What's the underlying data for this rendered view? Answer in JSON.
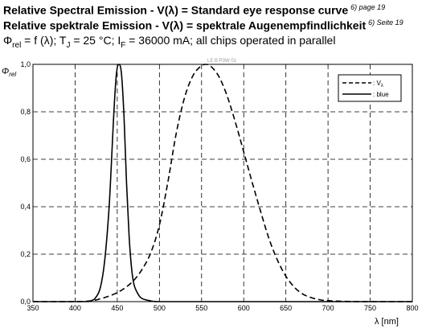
{
  "header": {
    "line1": "Relative Spectral Emission - V(λ) = Standard eye response curve",
    "line1_ref": "6) page 19",
    "line2": "Relative spektrale Emission - V(λ) = spektrale Augenempfindlichkeit",
    "line2_ref": "6) Seite 19",
    "line3_phi": "Φ",
    "line3_rel": "rel",
    "line3_a": " = f (λ); T",
    "line3_j": "J",
    "line3_b": " = 25 °C; I",
    "line3_f": "F",
    "line3_c": " = 36000 mA; all chips operated in parallel"
  },
  "watermark": "LE B P3W 01",
  "chart_data": {
    "type": "line",
    "xlabel": "λ [nm]",
    "ylabel_main": "Φ",
    "ylabel_sub": "rel",
    "xlim": [
      350,
      800
    ],
    "ylim": [
      0,
      1.0
    ],
    "xticks": [
      350,
      400,
      450,
      500,
      550,
      600,
      650,
      700,
      750,
      800
    ],
    "xtick_labels": [
      "350",
      "400",
      "450",
      "500",
      "550",
      "600",
      "650",
      "700",
      "750",
      "800"
    ],
    "yticks": [
      0,
      0.2,
      0.4,
      0.6,
      0.8,
      1.0
    ],
    "ytick_labels": [
      "0,0",
      "0,2",
      "0,4",
      "0,6",
      "0,8",
      "1,0"
    ],
    "grid": "dashed",
    "legend_position": "top-right",
    "series": [
      {
        "name": ": V",
        "name_sub": "λ",
        "style": "dashed",
        "color": "#000000",
        "x": [
          350,
          400,
          420,
          430,
          440,
          450,
          460,
          470,
          480,
          490,
          500,
          510,
          520,
          530,
          540,
          550,
          555,
          560,
          570,
          580,
          590,
          600,
          610,
          620,
          630,
          640,
          650,
          660,
          670,
          680,
          690,
          700,
          720,
          750,
          800
        ],
        "y": [
          0.0,
          0.0,
          0.004,
          0.012,
          0.023,
          0.038,
          0.06,
          0.091,
          0.139,
          0.208,
          0.323,
          0.503,
          0.71,
          0.862,
          0.954,
          0.995,
          1.0,
          0.995,
          0.952,
          0.87,
          0.757,
          0.631,
          0.503,
          0.381,
          0.265,
          0.175,
          0.107,
          0.061,
          0.032,
          0.017,
          0.008,
          0.004,
          0.001,
          0.0,
          0.0
        ]
      },
      {
        "name": ": blue",
        "style": "solid",
        "color": "#000000",
        "x": [
          350,
          410,
          420,
          425,
          430,
          435,
          440,
          443,
          446,
          449,
          452,
          455,
          458,
          461,
          464,
          467,
          470,
          475,
          480,
          490,
          500,
          550,
          800
        ],
        "y": [
          0.0,
          0.0,
          0.005,
          0.02,
          0.06,
          0.17,
          0.38,
          0.58,
          0.8,
          0.96,
          1.0,
          0.96,
          0.78,
          0.5,
          0.28,
          0.14,
          0.07,
          0.03,
          0.012,
          0.003,
          0.0,
          0.0,
          0.0
        ]
      }
    ]
  }
}
